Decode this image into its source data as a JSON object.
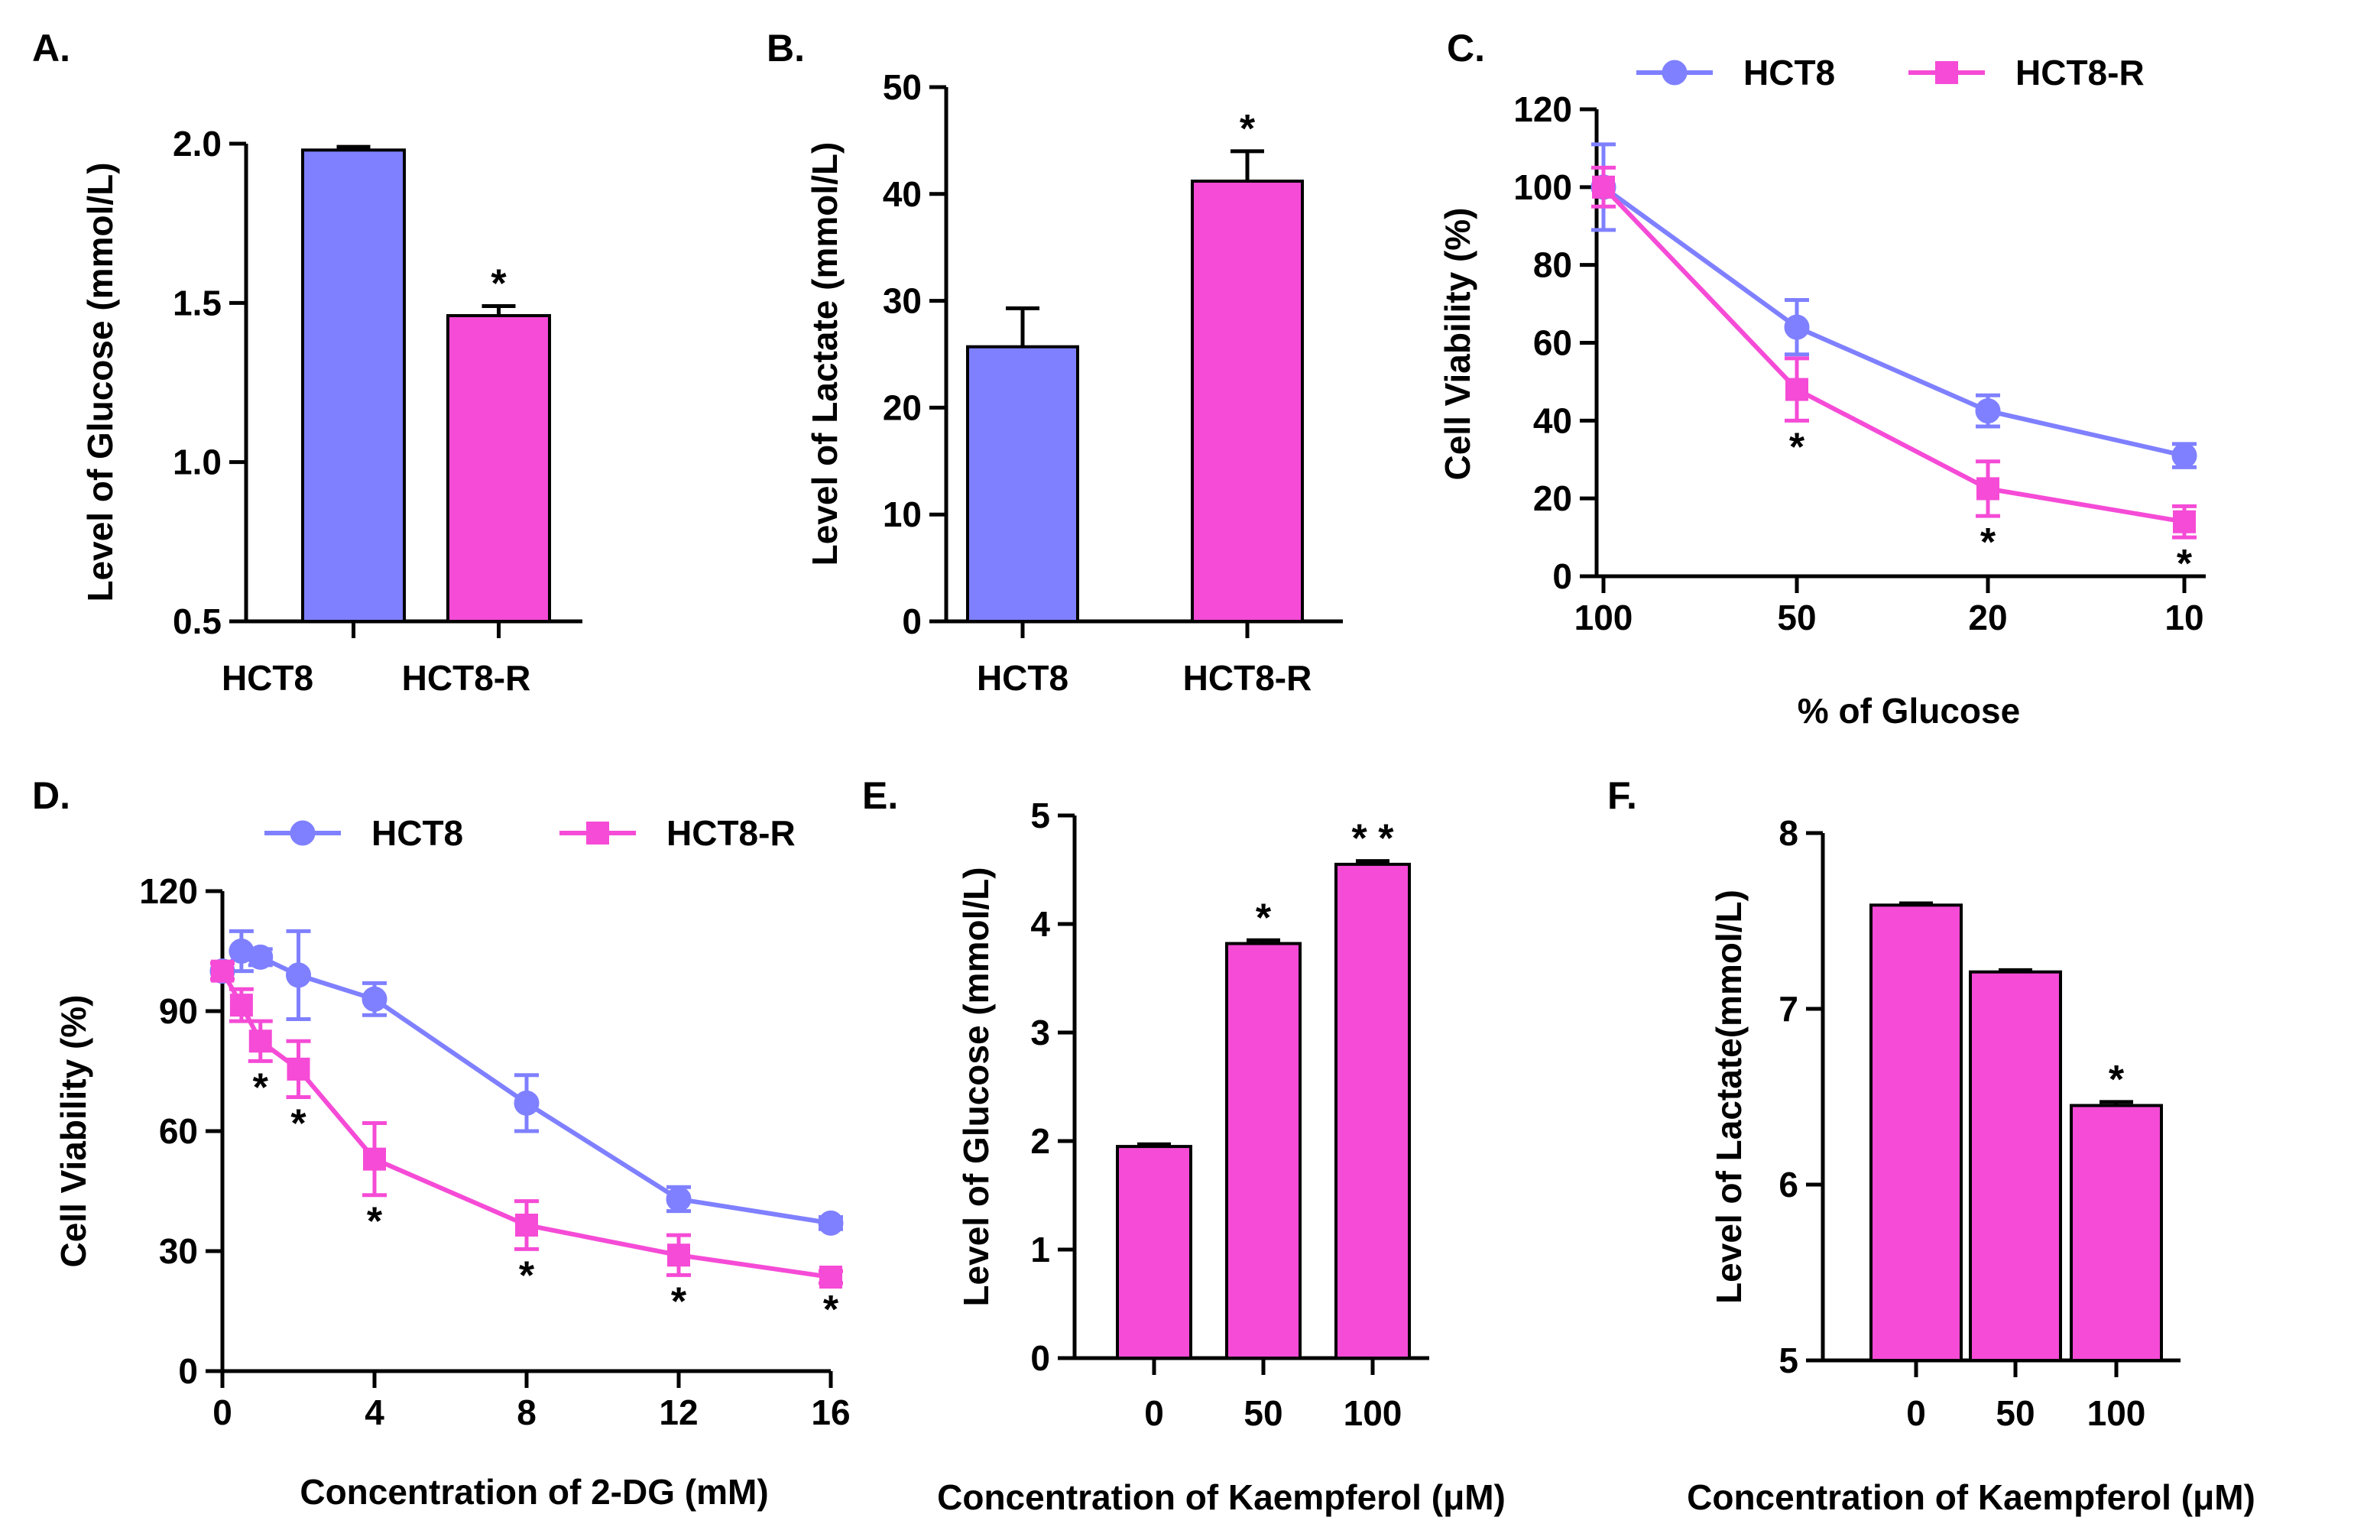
{
  "figure": {
    "colors": {
      "hct8": "#7f80ff",
      "hct8r": "#f54bd6",
      "axis": "#000000"
    }
  },
  "chart_data": [
    {
      "panel": "A.",
      "type": "bar",
      "title": "",
      "xlabel": "",
      "ylabel": "Level of Glucose (mmol/L)",
      "categories": [
        "HCT8",
        "HCT8-R"
      ],
      "values": [
        1.98,
        1.46
      ],
      "errors": [
        0.01,
        0.03
      ],
      "bar_colors": [
        "#7f80ff",
        "#f54bd6"
      ],
      "significance": [
        "",
        "*"
      ],
      "ylim": [
        0.5,
        2.0
      ],
      "yticks": [
        0.5,
        1.0,
        1.5,
        2.0
      ],
      "ytick_labels": [
        "0.5",
        "1.0",
        "1.5",
        "2.0"
      ],
      "grid": false
    },
    {
      "panel": "B.",
      "type": "bar",
      "title": "",
      "xlabel": "",
      "ylabel": "Level of Lactate (mmol/L)",
      "categories": [
        "HCT8",
        "HCT8-R"
      ],
      "values": [
        25.7,
        41.2
      ],
      "errors": [
        3.6,
        2.8
      ],
      "bar_colors": [
        "#7f80ff",
        "#f54bd6"
      ],
      "significance": [
        "",
        "*"
      ],
      "ylim": [
        0,
        50
      ],
      "yticks": [
        0,
        10,
        20,
        30,
        40,
        50
      ],
      "ytick_labels": [
        "0",
        "10",
        "20",
        "30",
        "40",
        "50"
      ],
      "grid": false
    },
    {
      "panel": "C.",
      "type": "line",
      "title": "",
      "xlabel": "% of Glucose",
      "ylabel": "Cell Viability (%)",
      "categories": [
        "100",
        "50",
        "20",
        "10"
      ],
      "series": [
        {
          "name": "HCT8",
          "marker": "circle",
          "color": "#7f80ff",
          "values": [
            100,
            64,
            42.5,
            31
          ],
          "errors": [
            11,
            7,
            4,
            3
          ],
          "significance": [
            "",
            "",
            "",
            ""
          ]
        },
        {
          "name": "HCT8-R",
          "marker": "square",
          "color": "#f54bd6",
          "values": [
            100,
            48,
            22.5,
            14
          ],
          "errors": [
            5,
            8,
            7,
            4
          ],
          "significance": [
            "",
            "*",
            "*",
            "*"
          ]
        }
      ],
      "ylim": [
        0,
        120
      ],
      "yticks": [
        0,
        20,
        40,
        60,
        80,
        100,
        120
      ],
      "ytick_labels": [
        "0",
        "20",
        "40",
        "60",
        "80",
        "100",
        "120"
      ],
      "legend": "top",
      "grid": false
    },
    {
      "panel": "D.",
      "type": "line",
      "title": "",
      "xlabel": "Concentration of 2-DG (mM)",
      "ylabel": "Cell Viability (%)",
      "x": [
        0,
        0.5,
        1,
        2,
        4,
        8,
        12,
        16
      ],
      "series": [
        {
          "name": "HCT8",
          "marker": "circle",
          "color": "#7f80ff",
          "values": [
            100,
            105,
            103.5,
            99,
            93,
            67,
            43,
            37
          ],
          "errors": [
            2,
            5,
            2,
            11,
            4,
            7,
            3,
            1.5
          ],
          "significance": [
            "",
            "",
            "",
            "",
            "",
            "",
            "",
            ""
          ]
        },
        {
          "name": "HCT8-R",
          "marker": "square",
          "color": "#f54bd6",
          "values": [
            100,
            91.5,
            82.5,
            75.5,
            53,
            36.5,
            29,
            23.5
          ],
          "errors": [
            2,
            4,
            5,
            7,
            9,
            6,
            5,
            1.5
          ],
          "significance": [
            "",
            "",
            "*",
            "*",
            "*",
            "*",
            "*",
            "*"
          ]
        }
      ],
      "xlim": [
        0,
        16
      ],
      "xticks": [
        0,
        4,
        8,
        12,
        16
      ],
      "xtick_labels": [
        "0",
        "4",
        "8",
        "12",
        "16"
      ],
      "ylim": [
        0,
        120
      ],
      "yticks": [
        0,
        30,
        60,
        90,
        120
      ],
      "ytick_labels": [
        "0",
        "30",
        "60",
        "90",
        "120"
      ],
      "legend": "top",
      "grid": false
    },
    {
      "panel": "E.",
      "type": "bar",
      "title": "",
      "xlabel": "Concentration of Kaempferol (μM)",
      "ylabel": "Level of Glucose (mmol/L)",
      "categories": [
        "0",
        "50",
        "100"
      ],
      "values": [
        1.95,
        3.82,
        4.55
      ],
      "errors": [
        0.02,
        0.03,
        0.03
      ],
      "bar_colors": [
        "#f54bd6",
        "#f54bd6",
        "#f54bd6"
      ],
      "significance": [
        "",
        "*",
        "* *"
      ],
      "ylim": [
        0,
        5
      ],
      "yticks": [
        0,
        1,
        2,
        3,
        4,
        5
      ],
      "ytick_labels": [
        "0",
        "1",
        "2",
        "3",
        "4",
        "5"
      ],
      "grid": false
    },
    {
      "panel": "F.",
      "type": "bar",
      "title": "",
      "xlabel": "Concentration of Kaempferol (μM)",
      "ylabel": "Level of Lactate(mmol/L)",
      "categories": [
        "0",
        "50",
        "100"
      ],
      "values": [
        7.59,
        7.21,
        6.45
      ],
      "errors": [
        0.01,
        0.01,
        0.02
      ],
      "bar_colors": [
        "#f54bd6",
        "#f54bd6",
        "#f54bd6"
      ],
      "significance": [
        "",
        "",
        "*"
      ],
      "ylim": [
        5,
        8
      ],
      "yticks": [
        5,
        6,
        7,
        8
      ],
      "ytick_labels": [
        "5",
        "6",
        "7",
        "8"
      ],
      "grid": false
    }
  ]
}
